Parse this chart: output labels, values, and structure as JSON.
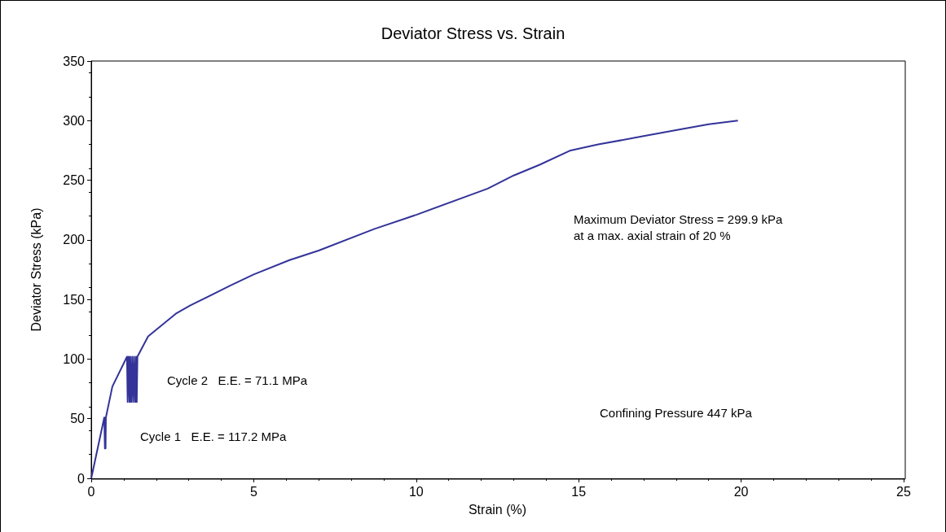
{
  "chart_data": {
    "type": "line",
    "title": "Deviator Stress vs. Strain",
    "xlabel": "Strain (%)",
    "ylabel": "Deviator Stress (kPa)",
    "x": [
      0,
      0.4,
      0.42,
      0.43,
      0.44,
      0.45,
      0.65,
      1.1,
      1.12,
      1.15,
      1.18,
      1.2,
      1.23,
      1.26,
      1.29,
      1.32,
      1.35,
      1.38,
      1.4,
      1.42,
      1.75,
      2.6,
      3.05,
      4.3,
      5,
      6.1,
      7,
      8.7,
      10,
      12.2,
      13,
      13.8,
      14.75,
      15.6,
      17,
      18.2,
      19,
      19.9
    ],
    "series": [
      {
        "color": "#333399",
        "values": [
          0,
          51,
          25,
          51,
          25,
          51,
          77,
          102,
          64,
          102,
          64,
          102,
          64,
          102,
          64,
          102,
          64,
          102,
          64,
          102,
          119,
          138,
          145,
          162,
          171,
          183,
          191,
          209,
          221,
          243,
          254,
          263,
          275,
          280,
          287,
          293,
          297,
          300
        ]
      }
    ],
    "xlim": [
      0,
      25
    ],
    "xticks": [
      0,
      5,
      10,
      15,
      20,
      25
    ],
    "ylim": [
      0,
      350
    ],
    "yticks": [
      0,
      50,
      100,
      150,
      200,
      250,
      300,
      350
    ],
    "grid": false,
    "marker": "none",
    "line_style": "solid",
    "annotations": [
      "Maximum Deviator Stress = 299.9 kPa\nat a max. axial strain of 20 %",
      "Confining Pressure 447 kPa",
      "Cycle 2   E.E. = 71.1 MPa",
      "Cycle 1   E.E. = 117.2 MPa"
    ]
  }
}
